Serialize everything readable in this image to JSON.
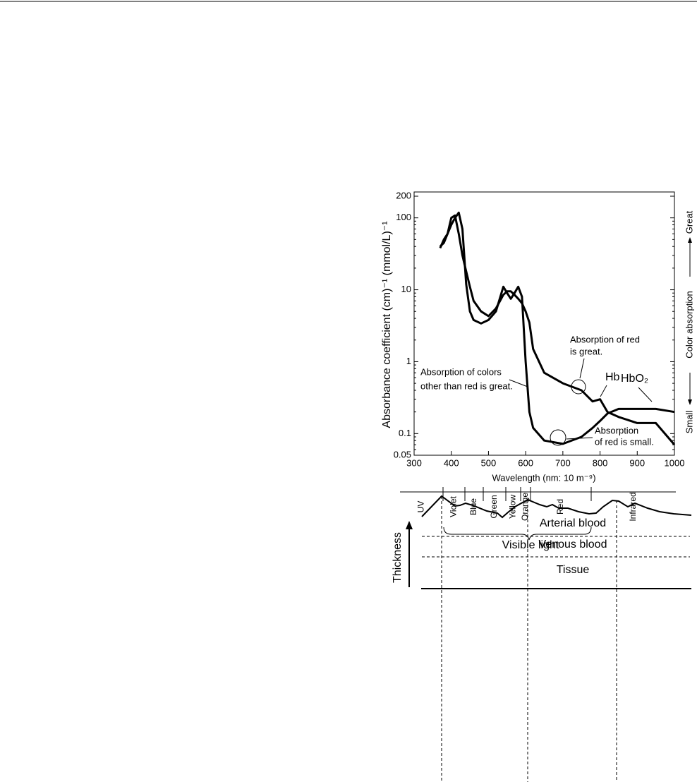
{
  "chart_data": {
    "type": "line",
    "x": [
      370,
      380,
      390,
      400,
      410,
      420,
      430,
      440,
      450,
      460,
      480,
      500,
      520,
      540,
      550,
      560,
      570,
      580,
      590,
      600,
      610,
      620,
      650,
      700,
      750,
      780,
      800,
      820,
      850,
      900,
      950,
      1000
    ],
    "series": [
      {
        "name": "Hb",
        "color": "#000000",
        "values": [
          40,
          45,
          60,
          100,
          108,
          60,
          30,
          18,
          11,
          7,
          5,
          4.3,
          5.5,
          8.5,
          9.5,
          9.5,
          8.5,
          7.5,
          6.5,
          5,
          3.5,
          1.5,
          0.7,
          0.5,
          0.4,
          0.28,
          0.3,
          0.2,
          0.17,
          0.14,
          0.14,
          0.07
        ]
      },
      {
        "name": "HbO₂",
        "color": "#000000",
        "values": [
          38,
          50,
          60,
          80,
          100,
          118,
          70,
          12,
          5,
          3.8,
          3.4,
          3.8,
          5,
          11,
          9,
          7.5,
          9,
          11,
          8,
          1,
          0.2,
          0.12,
          0.08,
          0.072,
          0.09,
          0.12,
          0.15,
          0.19,
          0.22,
          0.22,
          0.22,
          0.2
        ]
      }
    ],
    "xlabel": "Wavelength (nm: 10 m⁻⁹)",
    "ylabel": "Absorbance coefficient (cm)⁻¹ (mmol/L)⁻¹",
    "xlim": [
      300,
      1000
    ],
    "ylim": [
      0.05,
      200
    ],
    "xticks": [
      300,
      400,
      500,
      600,
      700,
      800,
      900,
      1000
    ],
    "yticks": [
      0.05,
      0.1,
      1,
      10,
      100,
      200
    ],
    "yscale": "log",
    "right_axis_label": {
      "low": "Small",
      "middle": "Color absorption",
      "high": "Great"
    },
    "annotations": [
      {
        "lines": [
          "Absorption of red",
          "is great."
        ]
      },
      {
        "lines": [
          "Absorption of colors",
          "other than red is great."
        ]
      },
      {
        "lines": [
          "Absorption",
          "of red is small."
        ]
      }
    ]
  },
  "spectrum_bands": {
    "bands": [
      "UV",
      "Violet",
      "Blue",
      "Green",
      "Yellow",
      "Orange",
      "Red",
      "Infrared"
    ],
    "visible_label": "Visible light"
  },
  "blood_diagram": {
    "axis_label": "Thickness",
    "layers": [
      "Arterial blood",
      "Venous blood",
      "Tissue"
    ]
  }
}
